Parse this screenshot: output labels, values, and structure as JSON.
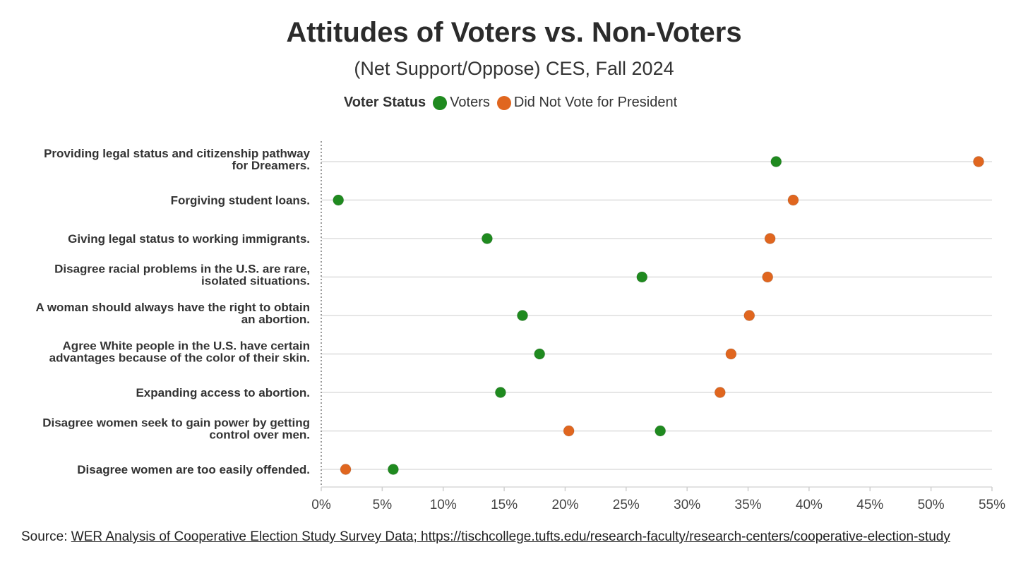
{
  "title": "Attitudes of Voters vs. Non-Voters",
  "subtitle": "(Net Support/Oppose) CES, Fall 2024",
  "legend": {
    "title": "Voter Status",
    "items": [
      {
        "label": "Voters",
        "color": "#1f8a1f"
      },
      {
        "label": "Did Not Vote for President",
        "color": "#e0661f"
      }
    ]
  },
  "source": {
    "prefix": "Source: ",
    "link_text": "WER Analysis of Cooperative Election Study Survey Data; https://tischcollege.tufts.edu/research-faculty/research-centers/cooperative-election-study"
  },
  "chart_data": {
    "type": "scatter",
    "title": "Attitudes of Voters vs. Non-Voters",
    "subtitle": "(Net Support/Oppose) CES, Fall 2024",
    "xlabel": "",
    "ylabel": "",
    "xlim": [
      0,
      55
    ],
    "x_ticks": [
      "0%",
      "5%",
      "10%",
      "15%",
      "20%",
      "25%",
      "30%",
      "35%",
      "40%",
      "45%",
      "50%",
      "55%"
    ],
    "grid": "horizontal",
    "legend_placement": "top-center",
    "categories": [
      [
        "Providing legal status and citizenship pathway",
        "for Dreamers."
      ],
      [
        "Forgiving student loans."
      ],
      [
        "Giving legal status to working immigrants."
      ],
      [
        "Disagree racial problems in the U.S. are rare,",
        "isolated situations."
      ],
      [
        "A woman should always have the right to obtain",
        "an abortion."
      ],
      [
        "Agree White people in the U.S. have certain",
        "advantages because of the color of their skin."
      ],
      [
        "Expanding access to abortion."
      ],
      [
        "Disagree women seek to gain power by getting",
        "control over men."
      ],
      [
        "Disagree women are too easily offended."
      ]
    ],
    "series": [
      {
        "name": "Voters",
        "color": "#1f8a1f",
        "values": [
          37.3,
          1.4,
          13.6,
          26.3,
          16.5,
          17.9,
          14.7,
          27.8,
          5.9
        ]
      },
      {
        "name": "Did Not Vote for President",
        "color": "#e0661f",
        "values": [
          53.9,
          38.7,
          36.8,
          36.6,
          35.1,
          33.6,
          32.7,
          20.3,
          2.0
        ]
      }
    ]
  }
}
